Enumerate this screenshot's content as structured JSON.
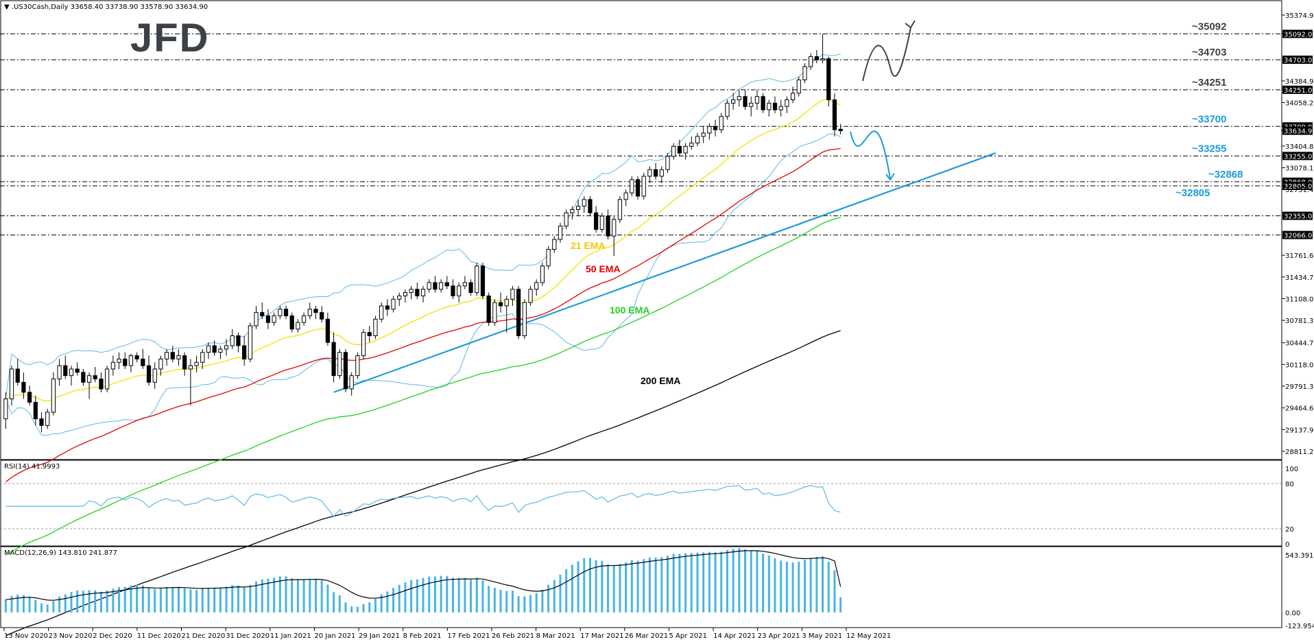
{
  "header": {
    "symbol_info": "▼ .US30Cash,Daily  33658.40 33738.90 33578.90 33634.90",
    "rsi_label": "RSI(14) 41.9993",
    "macd_label": "MACD(12,26,9) 143.810 241.877"
  },
  "logo": {
    "text": "JFD"
  },
  "colors": {
    "ema21": "#f2e200",
    "ema50": "#e30000",
    "ema100": "#1fd21f",
    "ema200": "#000000",
    "bollinger": "#5db7e8",
    "trendline": "#1e9bd6",
    "candle_up": "#ffffff",
    "candle_down": "#000000",
    "macd_hist": "#4ab4e6",
    "level_dark": "#3c4148",
    "level_blue": "#1e9bd6"
  },
  "price_axis": {
    "ticks": [
      "35374.90",
      "35092.00",
      "34703.00",
      "34384.90",
      "34251.00",
      "34058.20",
      "33700.00",
      "33634.90",
      "33404.80",
      "33255.00",
      "33078.10",
      "32868.00",
      "32805.00",
      "32751.40",
      "32355.00",
      "32066.00",
      "31761.60",
      "31434.70",
      "31108.00",
      "30781.30",
      "30444.70",
      "30118.00",
      "29791.30",
      "29464.60",
      "29137.90",
      "28811.20"
    ],
    "highlighted": [
      "35092.00",
      "34703.00",
      "34251.00",
      "33700.00",
      "33634.90",
      "33255.00",
      "32868.00",
      "32805.00",
      "32355.00",
      "32066.00"
    ]
  },
  "rsi_axis": {
    "ticks": [
      "100",
      "80",
      "20",
      "0"
    ]
  },
  "macd_axis": {
    "ticks": [
      "543.391",
      "0.00",
      "-123.954"
    ]
  },
  "date_axis": {
    "labels": [
      "13 Nov 2020",
      "23 Nov 2020",
      "2 Dec 2020",
      "11 Dec 2020",
      "21 Dec 2020",
      "31 Dec 2020",
      "11 Jan 2021",
      "20 Jan 2021",
      "29 Jan 2021",
      "8 Feb 2021",
      "17 Feb 2021",
      "26 Feb 2021",
      "8 Mar 2021",
      "17 Mar 2021",
      "26 Mar 2021",
      "5 Apr 2021",
      "14 Apr 2021",
      "23 Apr 2021",
      "3 May 2021",
      "12 May 2021"
    ]
  },
  "levels": [
    {
      "label": "~35092",
      "value": 35092,
      "tone": "dark"
    },
    {
      "label": "~34703",
      "value": 34703,
      "tone": "dark"
    },
    {
      "label": "~34251",
      "value": 34251,
      "tone": "dark"
    },
    {
      "label": "~33700",
      "value": 33700,
      "tone": "blue"
    },
    {
      "label": "~33255",
      "value": 33255,
      "tone": "blue"
    },
    {
      "label": "~32868",
      "value": 32868,
      "tone": "blue"
    },
    {
      "label": "~32805",
      "value": 32805,
      "tone": "blue"
    },
    {
      "value": 32355
    },
    {
      "value": 32066
    }
  ],
  "ema_labels": {
    "ema21": "21 EMA",
    "ema50": "50 EMA",
    "ema100": "100 EMA",
    "ema200": "200 EMA"
  },
  "chart_data": {
    "type": "candlestick",
    "instrument": ".US30Cash",
    "timeframe": "Daily",
    "ylim": [
      28811.2,
      35374.9
    ],
    "ohlc": [
      [
        29300,
        29700,
        29150,
        29600
      ],
      [
        29600,
        30100,
        29500,
        30050
      ],
      [
        30050,
        30200,
        29800,
        29850
      ],
      [
        29850,
        30000,
        29600,
        29700
      ],
      [
        29700,
        29800,
        29500,
        29550
      ],
      [
        29550,
        29650,
        29200,
        29300
      ],
      [
        29300,
        29400,
        29100,
        29200
      ],
      [
        29200,
        29450,
        29150,
        29400
      ],
      [
        29400,
        30000,
        29350,
        29900
      ],
      [
        29900,
        30200,
        29800,
        30100
      ],
      [
        30100,
        30250,
        29900,
        29950
      ],
      [
        29950,
        30100,
        29800,
        30050
      ],
      [
        30050,
        30150,
        29950,
        30000
      ],
      [
        30000,
        30050,
        29800,
        29850
      ],
      [
        29850,
        30000,
        29600,
        29950
      ],
      [
        29950,
        30080,
        29850,
        29900
      ],
      [
        29900,
        30000,
        29700,
        29750
      ],
      [
        29750,
        30100,
        29700,
        30050
      ],
      [
        30050,
        30250,
        29950,
        30150
      ],
      [
        30150,
        30300,
        30050,
        30200
      ],
      [
        30200,
        30300,
        30050,
        30100
      ],
      [
        30100,
        30280,
        30000,
        30250
      ],
      [
        30250,
        30300,
        30150,
        30200
      ],
      [
        30200,
        30350,
        30050,
        30100
      ],
      [
        30100,
        30250,
        29800,
        29850
      ],
      [
        29850,
        30150,
        29750,
        30050
      ],
      [
        30050,
        30250,
        29950,
        30200
      ],
      [
        30200,
        30350,
        30100,
        30300
      ],
      [
        30300,
        30400,
        30150,
        30200
      ],
      [
        30200,
        30350,
        30100,
        30250
      ],
      [
        30250,
        30300,
        29950,
        30050
      ],
      [
        30050,
        30200,
        29500,
        30100
      ],
      [
        30100,
        30250,
        30000,
        30150
      ],
      [
        30150,
        30350,
        30050,
        30300
      ],
      [
        30300,
        30450,
        30200,
        30400
      ],
      [
        30400,
        30480,
        30250,
        30300
      ],
      [
        30300,
        30400,
        30200,
        30350
      ],
      [
        30350,
        30500,
        30250,
        30400
      ],
      [
        30400,
        30650,
        30350,
        30550
      ],
      [
        30550,
        30600,
        30300,
        30400
      ],
      [
        30400,
        30550,
        30100,
        30200
      ],
      [
        30200,
        30750,
        30150,
        30700
      ],
      [
        30700,
        31000,
        30650,
        30900
      ],
      [
        30900,
        31050,
        30800,
        30850
      ],
      [
        30850,
        30950,
        30650,
        30750
      ],
      [
        30750,
        30900,
        30700,
        30850
      ],
      [
        30850,
        31000,
        30800,
        30950
      ],
      [
        30950,
        31000,
        30800,
        30850
      ],
      [
        30850,
        30900,
        30600,
        30650
      ],
      [
        30650,
        30800,
        30600,
        30750
      ],
      [
        30750,
        30900,
        30700,
        30850
      ],
      [
        30850,
        31050,
        30800,
        30950
      ],
      [
        30950,
        31000,
        30800,
        30900
      ],
      [
        30900,
        31000,
        30750,
        30800
      ],
      [
        30800,
        30900,
        30400,
        30450
      ],
      [
        30450,
        30600,
        29850,
        29950
      ],
      [
        29950,
        30350,
        29900,
        30300
      ],
      [
        30300,
        30350,
        29700,
        29750
      ],
      [
        29750,
        30000,
        29650,
        29950
      ],
      [
        29950,
        30300,
        29900,
        30250
      ],
      [
        30250,
        30650,
        30200,
        30600
      ],
      [
        30600,
        30700,
        30450,
        30550
      ],
      [
        30550,
        30850,
        30500,
        30800
      ],
      [
        30800,
        31050,
        30750,
        31000
      ],
      [
        31000,
        31100,
        30850,
        30950
      ],
      [
        30950,
        31150,
        30900,
        31100
      ],
      [
        31100,
        31200,
        31000,
        31150
      ],
      [
        31150,
        31250,
        31050,
        31200
      ],
      [
        31200,
        31300,
        31100,
        31250
      ],
      [
        31250,
        31350,
        31100,
        31150
      ],
      [
        31150,
        31300,
        31050,
        31250
      ],
      [
        31250,
        31400,
        31200,
        31350
      ],
      [
        31350,
        31450,
        31200,
        31250
      ],
      [
        31250,
        31400,
        31200,
        31350
      ],
      [
        31350,
        31450,
        31250,
        31300
      ],
      [
        31300,
        31400,
        31100,
        31150
      ],
      [
        31150,
        31350,
        31050,
        31300
      ],
      [
        31300,
        31450,
        31250,
        31350
      ],
      [
        31350,
        31400,
        31150,
        31200
      ],
      [
        31200,
        31650,
        31150,
        31600
      ],
      [
        31600,
        31650,
        31100,
        31150
      ],
      [
        31150,
        31200,
        30700,
        30750
      ],
      [
        30750,
        31100,
        30700,
        31050
      ],
      [
        31050,
        31200,
        30900,
        31000
      ],
      [
        31000,
        31150,
        30600,
        31100
      ],
      [
        31100,
        31300,
        31000,
        31250
      ],
      [
        31250,
        31300,
        30500,
        30550
      ],
      [
        30550,
        31100,
        30500,
        31050
      ],
      [
        31050,
        31300,
        31000,
        31250
      ],
      [
        31250,
        31400,
        31150,
        31350
      ],
      [
        31350,
        31650,
        31300,
        31600
      ],
      [
        31600,
        31900,
        31550,
        31850
      ],
      [
        31850,
        32050,
        31800,
        32000
      ],
      [
        32000,
        32250,
        31950,
        32200
      ],
      [
        32200,
        32450,
        32150,
        32400
      ],
      [
        32400,
        32500,
        32300,
        32450
      ],
      [
        32450,
        32600,
        32350,
        32500
      ],
      [
        32500,
        32650,
        32400,
        32600
      ],
      [
        32600,
        32650,
        32350,
        32400
      ],
      [
        32400,
        32500,
        32100,
        32150
      ],
      [
        32150,
        32400,
        32100,
        32350
      ],
      [
        32350,
        32450,
        32000,
        32050
      ],
      [
        32050,
        32350,
        31750,
        32300
      ],
      [
        32300,
        32650,
        32250,
        32600
      ],
      [
        32600,
        32750,
        32500,
        32700
      ],
      [
        32700,
        32950,
        32650,
        32900
      ],
      [
        32900,
        32950,
        32600,
        32650
      ],
      [
        32650,
        33000,
        32600,
        32950
      ],
      [
        32950,
        33100,
        32850,
        33050
      ],
      [
        33050,
        33150,
        32900,
        32950
      ],
      [
        32950,
        33100,
        32850,
        33050
      ],
      [
        33050,
        33300,
        33000,
        33250
      ],
      [
        33250,
        33450,
        33200,
        33400
      ],
      [
        33400,
        33500,
        33250,
        33300
      ],
      [
        33300,
        33450,
        33200,
        33400
      ],
      [
        33400,
        33550,
        33350,
        33450
      ],
      [
        33450,
        33600,
        33400,
        33550
      ],
      [
        33550,
        33700,
        33450,
        33600
      ],
      [
        33600,
        33750,
        33500,
        33700
      ],
      [
        33700,
        33800,
        33550,
        33650
      ],
      [
        33650,
        33900,
        33600,
        33850
      ],
      [
        33850,
        34100,
        33800,
        34050
      ],
      [
        34050,
        34200,
        33950,
        34100
      ],
      [
        34100,
        34250,
        34000,
        34150
      ],
      [
        34150,
        34250,
        33950,
        34000
      ],
      [
        34000,
        34150,
        33850,
        34050
      ],
      [
        34050,
        34250,
        33950,
        34150
      ],
      [
        34150,
        34200,
        33900,
        33950
      ],
      [
        33950,
        34100,
        33850,
        34050
      ],
      [
        34050,
        34150,
        33900,
        33950
      ],
      [
        33950,
        34100,
        33850,
        34000
      ],
      [
        34000,
        34150,
        33900,
        34100
      ],
      [
        34100,
        34300,
        34050,
        34200
      ],
      [
        34200,
        34450,
        34150,
        34400
      ],
      [
        34400,
        34650,
        34350,
        34600
      ],
      [
        34600,
        34800,
        34550,
        34750
      ],
      [
        34750,
        34850,
        34650,
        34700
      ],
      [
        34700,
        35092,
        34650,
        34720
      ],
      [
        34720,
        34750,
        34000,
        34100
      ],
      [
        34100,
        34200,
        33550,
        33650
      ],
      [
        33658.4,
        33738.9,
        33578.9,
        33634.9
      ]
    ],
    "indicators": [
      "21 EMA",
      "50 EMA",
      "100 EMA",
      "200 EMA",
      "Bollinger Bands",
      "RSI(14)",
      "MACD(12,26,9)"
    ],
    "rsi_last": 41.9993,
    "macd_last": [
      143.81,
      241.877
    ]
  }
}
